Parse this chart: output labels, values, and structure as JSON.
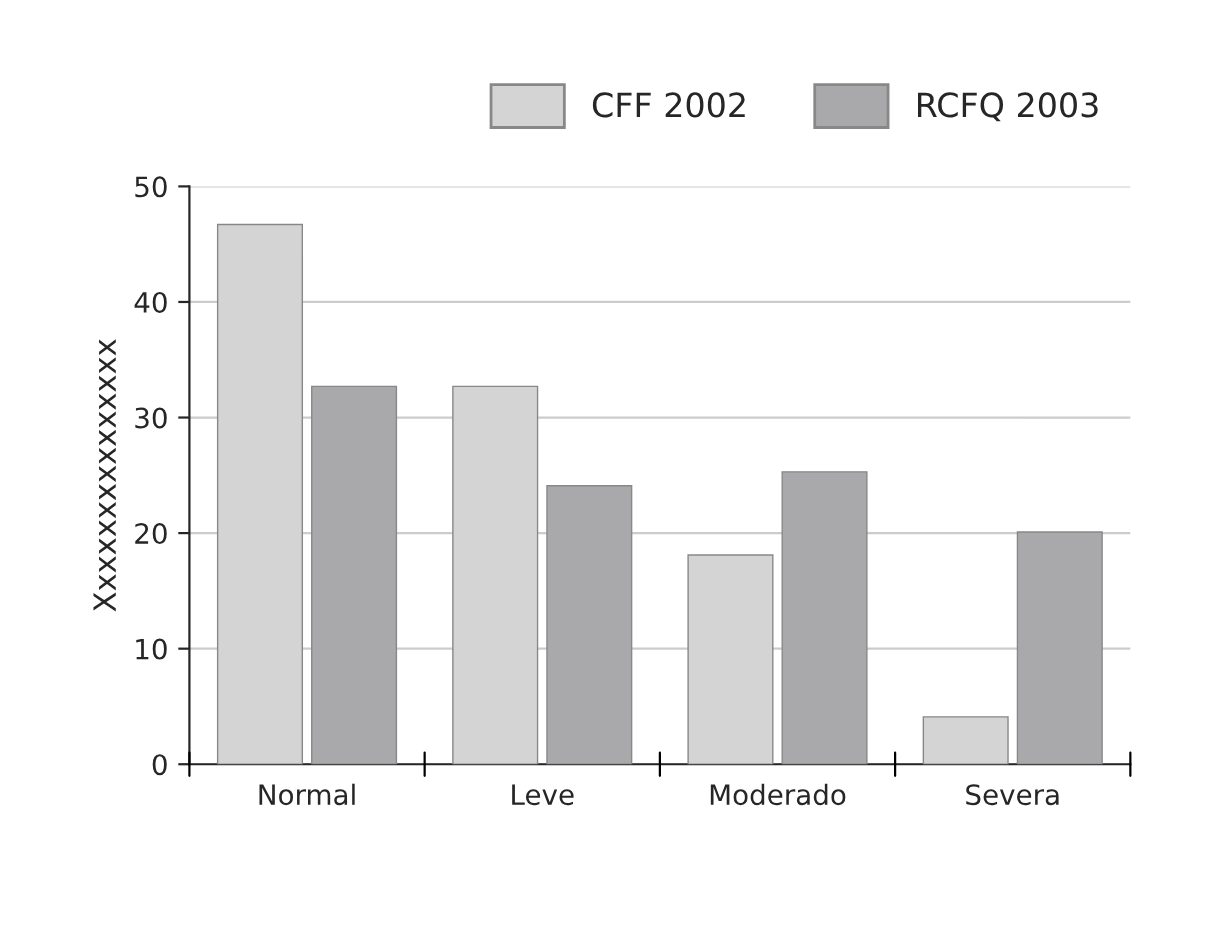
{
  "chart_data": {
    "type": "bar",
    "ylabel": "Xxxxxxxxxxxxxxx",
    "categories": [
      "Normal",
      "Leve",
      "Moderado",
      "Severa"
    ],
    "series": [
      {
        "name": "CFF 2002",
        "color": "#d4d4d4",
        "values": [
          46.7,
          32.7,
          18.1,
          4.1
        ]
      },
      {
        "name": "RCFQ 2003",
        "color": "#a9a9ab",
        "values": [
          32.7,
          24.1,
          25.3,
          20.1
        ]
      }
    ],
    "ylim": [
      0,
      50
    ],
    "yticks": [
      0,
      10,
      20,
      30,
      40,
      50
    ],
    "grid": "y",
    "legend": "top right"
  }
}
